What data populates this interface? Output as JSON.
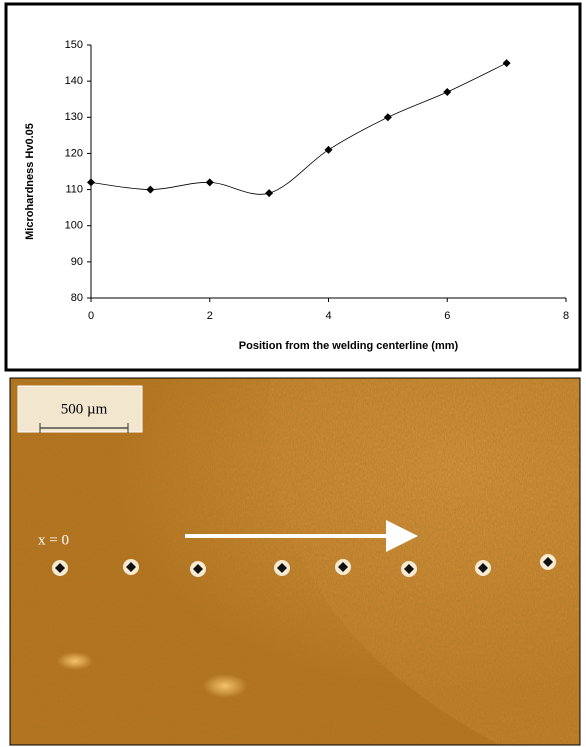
{
  "chart_data": {
    "type": "line",
    "x_label": "Position from the welding centerline (mm)",
    "y_label": "Microhardness Hv0.05",
    "x": [
      0,
      1,
      2,
      3,
      4,
      5,
      6,
      7
    ],
    "series": [
      {
        "color": "#000000",
        "values": [
          112,
          110,
          112,
          109,
          121,
          130,
          137,
          145
        ]
      }
    ],
    "xlim": [
      0,
      8
    ],
    "xticks": [
      0,
      2,
      4,
      6,
      8
    ],
    "ylim": [
      80,
      150
    ],
    "yticks": [
      80,
      90,
      100,
      110,
      120,
      130,
      140,
      150
    ],
    "smooth": true,
    "grid": false
  },
  "micrograph": {
    "scale_bar": "500 µm",
    "origin_label": "x = 0"
  }
}
